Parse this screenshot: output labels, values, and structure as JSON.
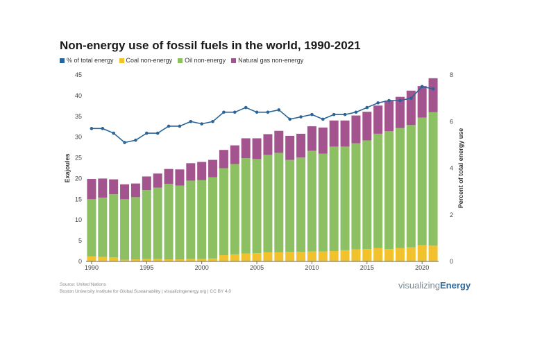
{
  "chart_data": {
    "type": "bar",
    "stacked": true,
    "title": "Non-energy use of fossil fuels in the world, 1990-2021",
    "ylabel": "Exajoules",
    "y2label": "Percent of total energy use",
    "ylim": [
      0,
      45
    ],
    "y2lim": [
      0,
      8
    ],
    "yticks": [
      0,
      5,
      10,
      15,
      20,
      25,
      30,
      35,
      40,
      45
    ],
    "y2ticks": [
      0,
      2,
      4,
      6,
      8
    ],
    "xticks": [
      1990,
      1995,
      2000,
      2005,
      2010,
      2015,
      2020
    ],
    "years": [
      1990,
      1991,
      1992,
      1993,
      1994,
      1995,
      1996,
      1997,
      1998,
      1999,
      2000,
      2001,
      2002,
      2003,
      2004,
      2005,
      2006,
      2007,
      2008,
      2009,
      2010,
      2011,
      2012,
      2013,
      2014,
      2015,
      2016,
      2017,
      2018,
      2019,
      2020,
      2021
    ],
    "legend": [
      {
        "name": "% of total energy",
        "color": "#2a6496"
      },
      {
        "name": "Coal non-energy",
        "color": "#f2c12e"
      },
      {
        "name": "Oil non-energy",
        "color": "#8cc063"
      },
      {
        "name": "Natural gas non-energy",
        "color": "#a3548f"
      }
    ],
    "series": [
      {
        "name": "Coal non-energy",
        "color": "#f2c12e",
        "values": [
          1.2,
          1.1,
          1.0,
          0.4,
          0.5,
          0.6,
          0.6,
          0.5,
          0.5,
          0.6,
          0.6,
          0.7,
          1.5,
          1.7,
          1.9,
          2.0,
          2.2,
          2.2,
          2.3,
          2.3,
          2.4,
          2.4,
          2.5,
          2.7,
          2.9,
          3.0,
          3.2,
          3.0,
          3.2,
          3.4,
          3.9,
          3.8
        ]
      },
      {
        "name": "Oil non-energy",
        "color": "#8cc063",
        "values": [
          13.8,
          14.3,
          15.2,
          14.6,
          15.0,
          16.6,
          17.2,
          18.2,
          17.8,
          18.9,
          19.0,
          19.6,
          21.0,
          21.8,
          23.0,
          22.7,
          23.5,
          24.0,
          22.2,
          22.8,
          24.3,
          23.6,
          25.2,
          25.0,
          25.6,
          26.2,
          27.6,
          28.4,
          29.0,
          29.5,
          30.8,
          32.2
        ]
      },
      {
        "name": "Natural gas non-energy",
        "color": "#a3548f",
        "values": [
          4.9,
          4.6,
          3.6,
          3.6,
          3.3,
          3.3,
          3.4,
          3.6,
          3.9,
          4.2,
          4.4,
          4.2,
          4.4,
          4.5,
          4.8,
          5.0,
          5.0,
          5.3,
          5.8,
          5.7,
          5.9,
          6.3,
          6.3,
          6.3,
          6.7,
          6.9,
          6.8,
          7.4,
          7.5,
          8.3,
          7.6,
          8.2
        ]
      }
    ],
    "line": {
      "name": "% of total energy",
      "color": "#2a6496",
      "axis": "right",
      "values": [
        5.7,
        5.7,
        5.5,
        5.1,
        5.2,
        5.5,
        5.5,
        5.8,
        5.8,
        6.0,
        5.9,
        6.0,
        6.4,
        6.4,
        6.6,
        6.4,
        6.4,
        6.5,
        6.1,
        6.2,
        6.3,
        6.1,
        6.3,
        6.3,
        6.4,
        6.6,
        6.8,
        6.9,
        6.9,
        7.0,
        7.5,
        7.4
      ]
    }
  },
  "footer": {
    "source_line1": "Source: United Nations",
    "source_line2": "Boston University Institute for Global Sustainability | visualizingenergy.org | CC BY 4.0",
    "brand_part1": "visualizing",
    "brand_part2": "Energy"
  }
}
